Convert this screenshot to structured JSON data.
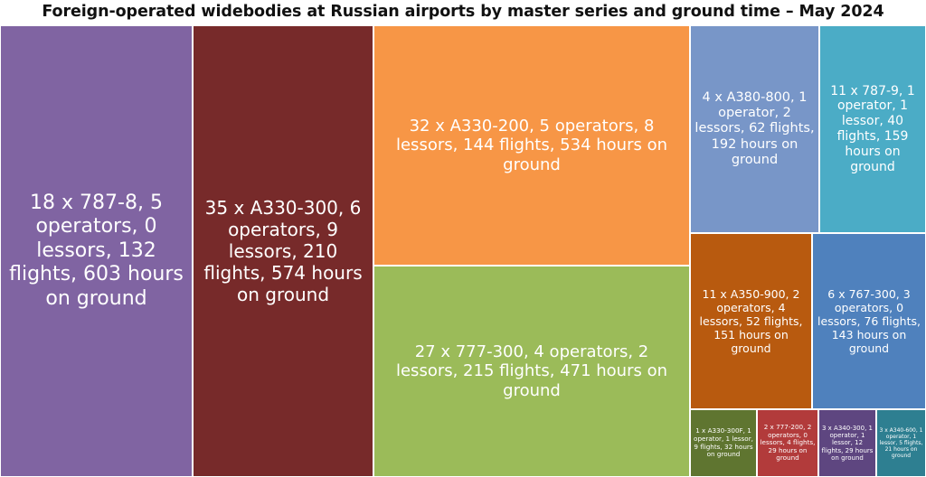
{
  "chart_data": {
    "type": "treemap",
    "title": "Foreign-operated widebodies at Russian airports by master series and ground time – May 2024",
    "value_field": "hours on ground",
    "items": [
      {
        "label": "18 x 787-8, 5 operators, 0 lessors, 132 flights, 603 hours on ground",
        "series": "787-8",
        "aircraft": 18,
        "operators": 5,
        "lessors": 0,
        "flights": 132,
        "hours": 603,
        "color": "#8064A2"
      },
      {
        "label": "35 x A330-300, 6 operators, 9 lessors, 210 flights, 574 hours on ground",
        "series": "A330-300",
        "aircraft": 35,
        "operators": 6,
        "lessors": 9,
        "flights": 210,
        "hours": 574,
        "color": "#772A2A"
      },
      {
        "label": "32 x A330-200, 5 operators, 8 lessors, 144 flights, 534 hours on ground",
        "series": "A330-200",
        "aircraft": 32,
        "operators": 5,
        "lessors": 8,
        "flights": 144,
        "hours": 534,
        "color": "#F79646"
      },
      {
        "label": "27 x 777-300, 4 operators, 2 lessors, 215 flights, 471 hours on ground",
        "series": "777-300",
        "aircraft": 27,
        "operators": 4,
        "lessors": 2,
        "flights": 215,
        "hours": 471,
        "color": "#9BBB59"
      },
      {
        "label": "4 x A380-800, 1 operator, 2 lessors, 62 flights, 192 hours on ground",
        "series": "A380-800",
        "aircraft": 4,
        "operators": 1,
        "lessors": 2,
        "flights": 62,
        "hours": 192,
        "color": "#7896C8"
      },
      {
        "label": "11 x 787-9, 1 operator, 1 lessor, 40 flights, 159 hours on ground",
        "series": "787-9",
        "aircraft": 11,
        "operators": 1,
        "lessors": 1,
        "flights": 40,
        "hours": 159,
        "color": "#4BACC6"
      },
      {
        "label": "11 x A350-900, 2 operators, 4 lessors, 52 flights, 151 hours on ground",
        "series": "A350-900",
        "aircraft": 11,
        "operators": 2,
        "lessors": 4,
        "flights": 52,
        "hours": 151,
        "color": "#B85A0F"
      },
      {
        "label": "6 x 767-300, 3 operators, 0 lessors, 76 flights, 143 hours on ground",
        "series": "767-300",
        "aircraft": 6,
        "operators": 3,
        "lessors": 0,
        "flights": 76,
        "hours": 143,
        "color": "#4F81BD"
      },
      {
        "label": "1 x A330-300F, 1 operator, 1 lessor, 9 flights, 32 hours on ground",
        "series": "A330-300F",
        "aircraft": 1,
        "operators": 1,
        "lessors": 1,
        "flights": 9,
        "hours": 32,
        "color": "#5F7530"
      },
      {
        "label": "2 x 777-200, 2 operators, 0 lessors, 4 flights, 29 hours on ground",
        "series": "777-200",
        "aircraft": 2,
        "operators": 2,
        "lessors": 0,
        "flights": 4,
        "hours": 29,
        "color": "#B23B3B"
      },
      {
        "label": "3 x A340-300, 1 operator, 1 lessor, 12 flights, 29 hours on ground",
        "series": "A340-300",
        "aircraft": 3,
        "operators": 1,
        "lessors": 1,
        "flights": 12,
        "hours": 29,
        "color": "#5E4680"
      },
      {
        "label": "3 x A340-600, 1 operator, 1 lessor, 5 flights, 21 hours on ground",
        "series": "A340-600",
        "aircraft": 3,
        "operators": 1,
        "lessors": 1,
        "flights": 5,
        "hours": 21,
        "color": "#2E7F91"
      }
    ]
  }
}
